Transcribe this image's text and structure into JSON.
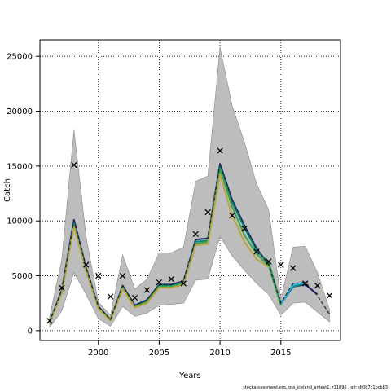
{
  "chart_data": {
    "type": "line",
    "xlabel": "Years",
    "ylabel": "Catch",
    "xlim": [
      1995.2,
      2019.9
    ],
    "ylim": [
      -900,
      26500
    ],
    "xticks": [
      2000,
      2005,
      2010,
      2015
    ],
    "yticks": [
      0,
      5000,
      10000,
      15000,
      20000,
      25000
    ],
    "grid": true,
    "band": {
      "x": [
        1996,
        1997,
        1998,
        1999,
        2000,
        2001,
        2002,
        2003,
        2004,
        2005,
        2006,
        2007,
        2008,
        2009,
        2010,
        2011,
        2012,
        2013,
        2014,
        2015,
        2016,
        2017,
        2018,
        2019
      ],
      "upper": [
        1300,
        6500,
        18300,
        8500,
        2600,
        1400,
        6900,
        3800,
        4700,
        7100,
        7100,
        7600,
        13600,
        14100,
        25800,
        20500,
        17200,
        13400,
        11000,
        2900,
        7600,
        7700,
        5300,
        1900
      ],
      "lower": [
        300,
        1800,
        5300,
        3300,
        1100,
        400,
        2200,
        1300,
        1600,
        2300,
        2400,
        2500,
        4600,
        4700,
        8600,
        6800,
        5500,
        4300,
        3300,
        1400,
        2500,
        2600,
        1700,
        800
      ]
    },
    "series": [
      {
        "color": "#1a237e",
        "style": "solid",
        "x": [
          1996,
          1997,
          1998,
          1999,
          2000,
          2001,
          2002,
          2003,
          2004,
          2005,
          2006,
          2007,
          2008,
          2009,
          2010,
          2011,
          2012,
          2013,
          2014,
          2015,
          2016,
          2017,
          2018
        ],
        "values": [
          800,
          3700,
          10100,
          5700,
          2200,
          1000,
          4100,
          2300,
          2800,
          4200,
          4200,
          4500,
          8300,
          8400,
          15200,
          11900,
          9600,
          7500,
          6000,
          2500,
          4000,
          4200,
          3300
        ]
      },
      {
        "color": "#00897b",
        "style": "solid",
        "x": [
          1996,
          1997,
          1998,
          1999,
          2000,
          2001,
          2002,
          2003,
          2004,
          2005,
          2006,
          2007,
          2008,
          2009,
          2010,
          2011,
          2012,
          2013,
          2014,
          2015,
          2016,
          2017
        ],
        "values": [
          800,
          3600,
          9800,
          5600,
          2100,
          1000,
          4000,
          2200,
          2700,
          4100,
          4100,
          4400,
          8100,
          8200,
          15000,
          11700,
          9400,
          7300,
          6200,
          2400,
          4000,
          4300
        ]
      },
      {
        "color": "#29b6f6",
        "style": "solid",
        "x": [
          2015,
          2016,
          2017
        ],
        "values": [
          2400,
          4200,
          4400
        ]
      },
      {
        "color": "#43a047",
        "style": "solid",
        "x": [
          1996,
          1997,
          1998,
          1999,
          2000,
          2001,
          2002,
          2003,
          2004,
          2005,
          2006,
          2007,
          2008,
          2009,
          2010,
          2011,
          2012,
          2013,
          2014,
          2015
        ],
        "values": [
          750,
          3500,
          9600,
          5500,
          2100,
          950,
          3900,
          2200,
          2600,
          4000,
          4000,
          4300,
          7900,
          8100,
          14700,
          11300,
          8700,
          7000,
          5900,
          2300
        ]
      },
      {
        "color": "#b8a640",
        "style": "solid",
        "x": [
          1996,
          1997,
          1998,
          1999,
          2000,
          2001,
          2002,
          2003,
          2004,
          2005,
          2006,
          2007,
          2008,
          2009,
          2010,
          2011,
          2012,
          2013,
          2014
        ],
        "values": [
          700,
          3400,
          9500,
          5400,
          2000,
          900,
          3800,
          2100,
          2500,
          3900,
          3900,
          4200,
          7800,
          7900,
          14200,
          10500,
          8100,
          6500,
          5800
        ]
      },
      {
        "color": "#222222",
        "style": "dashed",
        "x": [
          1996,
          1997,
          1998,
          1999,
          2000,
          2001,
          2002,
          2003,
          2004,
          2005,
          2006,
          2007,
          2008,
          2009,
          2010,
          2011,
          2012,
          2013,
          2014,
          2015,
          2016,
          2017,
          2018,
          2019
        ],
        "values": [
          800,
          3700,
          10000,
          5700,
          2200,
          1000,
          4100,
          2300,
          2800,
          4200,
          4200,
          4500,
          8300,
          8400,
          15200,
          11900,
          9600,
          7500,
          6000,
          2500,
          4300,
          4400,
          3200,
          1500
        ]
      }
    ],
    "observed": {
      "marker": "x",
      "x": [
        1996,
        1997,
        1998,
        1999,
        2000,
        2001,
        2002,
        2003,
        2004,
        2005,
        2006,
        2007,
        2008,
        2009,
        2010,
        2011,
        2012,
        2013,
        2014,
        2015,
        2016,
        2017,
        2018,
        2019
      ],
      "values": [
        900,
        3900,
        15100,
        6000,
        5000,
        3100,
        5000,
        3000,
        3700,
        4400,
        4700,
        4300,
        8800,
        10800,
        16400,
        10500,
        9300,
        7200,
        6300,
        6000,
        5700,
        4300,
        4100,
        3200
      ]
    }
  },
  "footer": "stockassessment.org, gss_iceland_antest1, r11896 , git: df0b7c1bcb83"
}
